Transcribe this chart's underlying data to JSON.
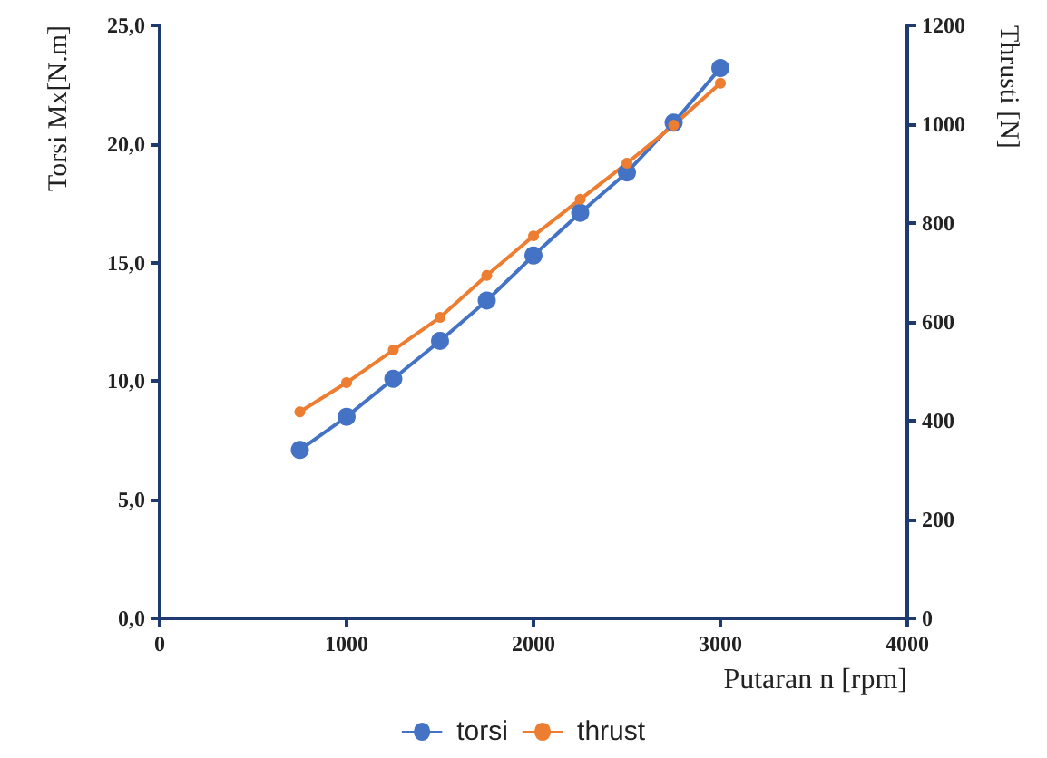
{
  "chart_data": {
    "type": "line",
    "xlabel": "Putaran n [rpm]",
    "ylabel": "Torsi Mx[N.m]",
    "y2label": "Thrusti [N]",
    "x": [
      750,
      1000,
      1250,
      1500,
      1750,
      2000,
      2250,
      2500,
      2750,
      3000
    ],
    "series": [
      {
        "name": "torsi",
        "color": "#4472c4",
        "values": [
          7.1,
          8.5,
          10.1,
          11.7,
          13.4,
          15.3,
          17.1,
          18.8,
          20.9,
          23.2
        ]
      },
      {
        "name": "thrust",
        "color": "#ed7d31",
        "axis": "y2",
        "values": [
          418,
          477,
          543,
          609,
          694,
          774,
          848,
          921,
          998,
          1083
        ]
      }
    ],
    "xlim": [
      0,
      4000
    ],
    "xticks": [
      0,
      1000,
      2000,
      3000,
      4000
    ],
    "ylim": [
      0,
      25
    ],
    "yticks": [
      {
        "value": 0,
        "label": "0,0"
      },
      {
        "value": 5,
        "label": "5,0"
      },
      {
        "value": 10,
        "label": "10,0"
      },
      {
        "value": 15,
        "label": "15,0"
      },
      {
        "value": 20,
        "label": "20,0"
      },
      {
        "value": 25,
        "label": "25,0"
      }
    ],
    "y2lim": [
      0,
      1200
    ],
    "y2ticks": [
      0,
      200,
      400,
      600,
      800,
      1000,
      1200
    ],
    "grid": false,
    "legend": "bottom",
    "marker": "circle",
    "line_style": "solid"
  }
}
